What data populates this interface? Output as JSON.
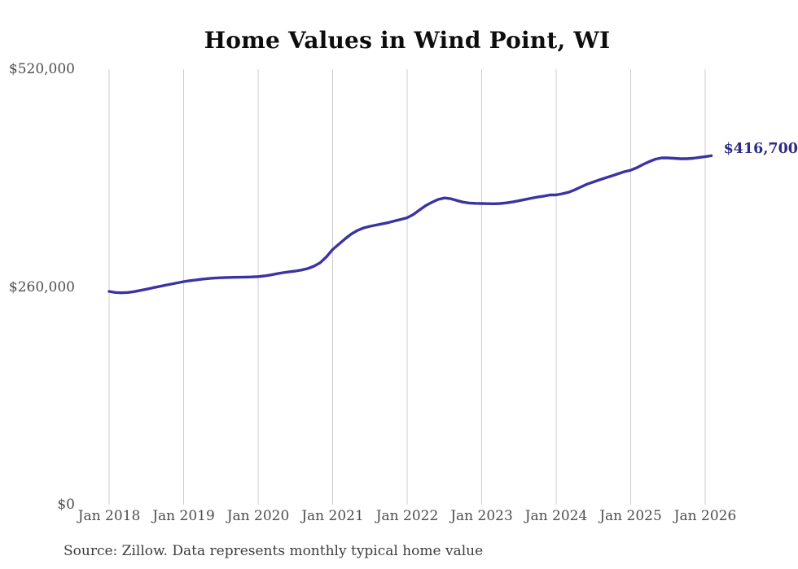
{
  "title": "Home Values in Wind Point, WI",
  "source_note": "Source: Zillow. Data represents monthly typical home value",
  "colors": {
    "line": "#3a34a3",
    "end_label": "#2d2b85",
    "gridline": "#cccccc",
    "tick_text": "#4d4d4d",
    "title_text": "#0d0d0d",
    "source_text": "#3d3d3d",
    "background": "#ffffff"
  },
  "chart_data": {
    "type": "line",
    "title": "Home Values in Wind Point, WI",
    "series_name": "Monthly typical home value",
    "xlabel": "",
    "ylabel": "",
    "ylim": [
      0,
      520000
    ],
    "grid": "vertical-only",
    "legend": "none",
    "end_label": "$416,700",
    "end_value": 416700,
    "y_ticks": [
      {
        "value": 0,
        "label": "$0"
      },
      {
        "value": 260000,
        "label": "$260,000"
      },
      {
        "value": 520000,
        "label": "$520,000"
      }
    ],
    "x_tick_labels": [
      "Jan 2018",
      "Jan 2019",
      "Jan 2020",
      "Jan 2021",
      "Jan 2022",
      "Jan 2023",
      "Jan 2024",
      "Jan 2025",
      "Jan 2026"
    ],
    "x": [
      "2018-01",
      "2018-02",
      "2018-03",
      "2018-04",
      "2018-05",
      "2018-06",
      "2018-07",
      "2018-08",
      "2018-09",
      "2018-10",
      "2018-11",
      "2018-12",
      "2019-01",
      "2019-02",
      "2019-03",
      "2019-04",
      "2019-05",
      "2019-06",
      "2019-07",
      "2019-08",
      "2019-09",
      "2019-10",
      "2019-11",
      "2019-12",
      "2020-01",
      "2020-02",
      "2020-03",
      "2020-04",
      "2020-05",
      "2020-06",
      "2020-07",
      "2020-08",
      "2020-09",
      "2020-10",
      "2020-11",
      "2020-12",
      "2021-01",
      "2021-02",
      "2021-03",
      "2021-04",
      "2021-05",
      "2021-06",
      "2021-07",
      "2021-08",
      "2021-09",
      "2021-10",
      "2021-11",
      "2021-12",
      "2022-01",
      "2022-02",
      "2022-03",
      "2022-04",
      "2022-05",
      "2022-06",
      "2022-07",
      "2022-08",
      "2022-09",
      "2022-10",
      "2022-11",
      "2022-12",
      "2023-01",
      "2023-02",
      "2023-03",
      "2023-04",
      "2023-05",
      "2023-06",
      "2023-07",
      "2023-08",
      "2023-09",
      "2023-10",
      "2023-11",
      "2023-12",
      "2024-01",
      "2024-02",
      "2024-03",
      "2024-04",
      "2024-05",
      "2024-06",
      "2024-07",
      "2024-08",
      "2024-09",
      "2024-10",
      "2024-11",
      "2024-12",
      "2025-01",
      "2025-02",
      "2025-03",
      "2025-04",
      "2025-05",
      "2025-06",
      "2025-07",
      "2025-08",
      "2025-09",
      "2025-10",
      "2025-11",
      "2025-12",
      "2026-01",
      "2026-02"
    ],
    "values": [
      254700,
      253400,
      253000,
      253400,
      254400,
      255800,
      257300,
      258900,
      260400,
      261900,
      263400,
      264900,
      266300,
      267500,
      268400,
      269300,
      270000,
      270600,
      271000,
      271300,
      271500,
      271600,
      271800,
      272000,
      272300,
      273100,
      274300,
      275700,
      277000,
      278100,
      279000,
      280200,
      282000,
      284800,
      289000,
      296000,
      304700,
      311000,
      317400,
      323200,
      327500,
      330500,
      332400,
      333900,
      335400,
      336900,
      338800,
      340700,
      342600,
      346500,
      351900,
      357200,
      361100,
      364500,
      366200,
      365400,
      363200,
      361300,
      360200,
      359800,
      359600,
      359400,
      359300,
      359600,
      360400,
      361500,
      362900,
      364400,
      365900,
      367300,
      368500,
      369800,
      369900,
      371300,
      373000,
      376000,
      379500,
      382800,
      385400,
      387900,
      390300,
      392700,
      395200,
      397600,
      399400,
      402400,
      406300,
      409700,
      412600,
      414100,
      414100,
      413600,
      413100,
      413100,
      413600,
      414600,
      415600,
      416700
    ]
  }
}
